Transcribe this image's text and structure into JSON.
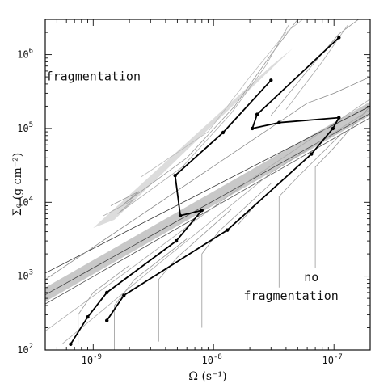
{
  "chart_data": {
    "type": "line",
    "xlabel": "Ω (s⁻¹)",
    "ylabel": "Σ₀ (g cm⁻²)",
    "xscale": "log",
    "yscale": "log",
    "xlim": [
      4e-10,
      2e-07
    ],
    "ylim": [
      100,
      3000000
    ],
    "grid": false,
    "x_ticks": [
      {
        "value": 1e-09,
        "base": "10",
        "exp": "-9"
      },
      {
        "value": 1e-08,
        "base": "10",
        "exp": "-8"
      },
      {
        "value": 1e-07,
        "base": "10",
        "exp": "-7"
      }
    ],
    "y_ticks": [
      {
        "value": 100,
        "base": "10",
        "exp": "2"
      },
      {
        "value": 1000,
        "base": "10",
        "exp": "3"
      },
      {
        "value": 10000,
        "base": "10",
        "exp": "4"
      },
      {
        "value": 100000,
        "base": "10",
        "exp": "5"
      },
      {
        "value": 1000000,
        "base": "10",
        "exp": "6"
      }
    ],
    "annotations": [
      {
        "text": "fragmentation",
        "x": 1e-09,
        "y": 450000
      },
      {
        "text": "no",
        "x": 6.5e-08,
        "y": 850
      },
      {
        "text": "fragmentation",
        "x": 4.4e-08,
        "y": 480
      }
    ],
    "series": [
      {
        "values": [
          [
            6.5e-10,
            120
          ],
          [
            9e-10,
            280
          ],
          [
            1.3e-09,
            600
          ],
          [
            4.9e-09,
            3000
          ],
          [
            8e-09,
            7800
          ],
          [
            5.3e-09,
            6600
          ],
          [
            4.8e-09,
            23000
          ],
          [
            1.2e-08,
            88000
          ],
          [
            3e-08,
            450000
          ]
        ]
      },
      {
        "values": [
          [
            1.3e-09,
            250
          ],
          [
            1.8e-09,
            550
          ],
          [
            1.3e-08,
            4200
          ],
          [
            6.5e-08,
            45000
          ],
          [
            9.8e-08,
            100000
          ],
          [
            1.1e-07,
            140000
          ],
          [
            3.5e-08,
            120000
          ],
          [
            2.1e-08,
            100000
          ],
          [
            2.3e-08,
            155000
          ],
          [
            1.1e-07,
            1700000
          ]
        ]
      }
    ],
    "contours": [
      {
        "color": "#333333",
        "values": [
          [
            4e-10,
            1100
          ],
          [
            2e-07,
            200000
          ]
        ]
      },
      {
        "color": "#444444",
        "values": [
          [
            4e-10,
            560
          ],
          [
            2e-07,
            160000
          ]
        ]
      },
      {
        "color": "#555555",
        "values": [
          [
            4e-10,
            420
          ],
          [
            2e-07,
            140000
          ]
        ]
      },
      {
        "color": "#888888",
        "values": [
          [
            4e-10,
            900
          ],
          [
            6e-08,
            220000
          ],
          [
            1e-07,
            300000
          ],
          [
            2e-07,
            500000
          ]
        ]
      },
      {
        "color": "#999999",
        "values": [
          [
            1.4e-09,
            9000
          ],
          [
            2.4e-09,
            14000
          ],
          [
            1.8e-09,
            9500
          ],
          [
            6e-09,
            40000
          ],
          [
            1.5e-08,
            200000
          ],
          [
            3e-08,
            1000000
          ],
          [
            5e-08,
            3000000
          ]
        ]
      },
      {
        "color": "#aaaaaa",
        "values": [
          [
            1.2e-09,
            6500
          ],
          [
            2.2e-09,
            11000
          ],
          [
            1.6e-09,
            7000
          ],
          [
            5.5e-09,
            30000
          ],
          [
            1.4e-08,
            160000
          ],
          [
            2.7e-08,
            700000
          ],
          [
            4.2e-08,
            2500000
          ]
        ]
      },
      {
        "color": "#bbbbbb",
        "values": [
          [
            2.5e-09,
            22000
          ],
          [
            9e-09,
            90000
          ],
          [
            2e-08,
            500000
          ],
          [
            4e-08,
            2000000
          ],
          [
            5.5e-08,
            3000000
          ]
        ]
      },
      {
        "color": "#999999",
        "values": [
          [
            3e-08,
            150000
          ],
          [
            6e-08,
            600000
          ],
          [
            1.1e-07,
            1900000
          ],
          [
            1.6e-07,
            3000000
          ]
        ]
      },
      {
        "color": "#aaaaaa",
        "values": [
          [
            4e-08,
            180000
          ],
          [
            8e-08,
            800000
          ],
          [
            1.3e-07,
            2500000
          ]
        ]
      },
      {
        "color": "#999999",
        "values": [
          [
            7.5e-10,
            120
          ],
          [
            7.5e-10,
            300
          ],
          [
            1e-09,
            600
          ],
          [
            2e-09,
            1400
          ]
        ]
      },
      {
        "color": "#999999",
        "values": [
          [
            1.5e-09,
            100
          ],
          [
            1.5e-09,
            400
          ],
          [
            2.2e-09,
            900
          ],
          [
            6e-09,
            3200
          ]
        ]
      },
      {
        "color": "#999999",
        "values": [
          [
            3.5e-09,
            130
          ],
          [
            3.5e-09,
            900
          ],
          [
            5e-09,
            1800
          ],
          [
            1.4e-08,
            8000
          ]
        ]
      },
      {
        "color": "#999999",
        "values": [
          [
            8e-09,
            200
          ],
          [
            8e-09,
            2000
          ],
          [
            1.1e-08,
            4000
          ],
          [
            3e-08,
            18000
          ]
        ]
      },
      {
        "color": "#999999",
        "values": [
          [
            1.6e-08,
            350
          ],
          [
            1.6e-08,
            5000
          ],
          [
            2.2e-08,
            9000
          ],
          [
            6e-08,
            40000
          ]
        ]
      },
      {
        "color": "#999999",
        "values": [
          [
            3.5e-08,
            700
          ],
          [
            3.5e-08,
            12000
          ],
          [
            5e-08,
            22000
          ],
          [
            1.2e-07,
            90000
          ]
        ]
      },
      {
        "color": "#999999",
        "values": [
          [
            7e-08,
            1300
          ],
          [
            7e-08,
            30000
          ],
          [
            1e-07,
            55000
          ],
          [
            2e-07,
            200000
          ]
        ]
      },
      {
        "color": "#aaaaaa",
        "values": [
          [
            4e-10,
            180
          ],
          [
            2.5e-09,
            1600
          ],
          [
            2e-08,
            20000
          ],
          [
            2e-07,
            250000
          ]
        ]
      },
      {
        "color": "#aaaaaa",
        "values": [
          [
            5.5e-10,
            120
          ],
          [
            3e-09,
            1200
          ],
          [
            3e-08,
            25000
          ],
          [
            2e-07,
            180000
          ]
        ]
      }
    ],
    "bands": [
      {
        "color": "#c8c8c8",
        "values": [
          [
            4e-10,
            700
          ],
          [
            2e-07,
            230000
          ],
          [
            2e-07,
            150000
          ],
          [
            4e-10,
            450
          ]
        ]
      },
      {
        "color": "#dcdcdc",
        "values": [
          [
            1e-09,
            4500
          ],
          [
            3e-08,
            700000
          ],
          [
            4.5e-08,
            1200000
          ],
          [
            1.5e-09,
            5800
          ]
        ]
      }
    ]
  }
}
